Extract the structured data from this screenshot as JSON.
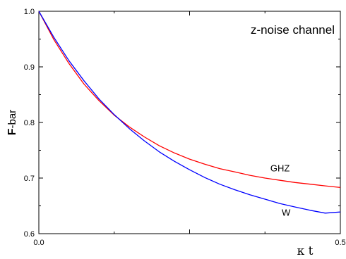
{
  "chart_data": {
    "type": "line",
    "title": "z-noise channel",
    "xlabel": "κ t",
    "ylabel_bold": "F",
    "ylabel_rest": "-bar",
    "xlim": [
      0.0,
      0.5
    ],
    "ylim": [
      0.6,
      1.0
    ],
    "xticks": [
      0.0,
      0.25,
      0.5
    ],
    "xtick_labels": [
      "0.0",
      "",
      "0.5"
    ],
    "yticks": [
      0.6,
      0.7,
      0.8,
      0.9,
      1.0
    ],
    "ytick_labels": [
      "0.6",
      "0.7",
      "0.8",
      "0.9",
      "1.0"
    ],
    "grid": false,
    "x": [
      0.0,
      0.025,
      0.05,
      0.075,
      0.1,
      0.125,
      0.15,
      0.175,
      0.2,
      0.225,
      0.25,
      0.275,
      0.3,
      0.325,
      0.35,
      0.375,
      0.4,
      0.425,
      0.45,
      0.475,
      0.5
    ],
    "series": [
      {
        "name": "GHZ",
        "color": "#ff0000",
        "values": [
          1.0,
          0.949,
          0.906,
          0.869,
          0.839,
          0.813,
          0.792,
          0.774,
          0.758,
          0.745,
          0.734,
          0.725,
          0.717,
          0.711,
          0.705,
          0.7,
          0.696,
          0.692,
          0.689,
          0.686,
          0.683
        ]
      },
      {
        "name": "W",
        "color": "#0000ff",
        "values": [
          1.0,
          0.953,
          0.911,
          0.875,
          0.842,
          0.814,
          0.789,
          0.767,
          0.747,
          0.73,
          0.715,
          0.701,
          0.689,
          0.679,
          0.67,
          0.662,
          0.654,
          0.648,
          0.642,
          0.637,
          0.639
        ]
      }
    ],
    "annotations": [
      {
        "text": "GHZ",
        "x": 0.4,
        "y": 0.712
      },
      {
        "text": "W",
        "x": 0.41,
        "y": 0.632
      }
    ]
  }
}
